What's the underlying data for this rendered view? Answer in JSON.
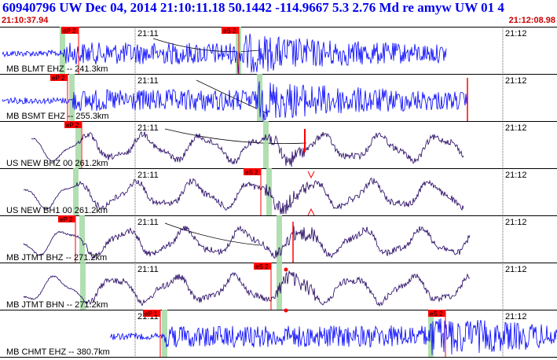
{
  "header": {
    "title": "60940796 UW Dec 04, 2014 21:10:11.18    50.1442 -114.9667  5.3 2.76 Md re amyw UW 01    4",
    "start_time": "21:10:37.94",
    "end_time": "21:12:08.98"
  },
  "tick_labels": [
    "21:11",
    "21:12"
  ],
  "colors": {
    "trace_short_period": "#0000ff",
    "trace_broadband": "#200060",
    "pick_flag": "#ff0000",
    "pick_window": "#a8dba8",
    "arrival_curve": "#000000"
  },
  "traces": [
    {
      "label": "MB BLMT EHZ -- 241.3km",
      "pick": "eP 2",
      "pick2": "eS 2"
    },
    {
      "label": "MB BSMT EHZ -- 255.3km",
      "pick": "eP 2"
    },
    {
      "label": "US NEW BHZ 00 261.2km",
      "pick": "eP 2"
    },
    {
      "label": "US NEW BH1 00 261.2km",
      "pick": "eS 2"
    },
    {
      "label": "MB JTMT BHZ -- 271.2km",
      "pick": "eP 2"
    },
    {
      "label": "MB JTMT BHN -- 271.2km",
      "pick": "eS 2"
    },
    {
      "label": "MB CHMT EHZ -- 380.7km",
      "pick": "eP 1",
      "pick2": "eS 2"
    }
  ]
}
